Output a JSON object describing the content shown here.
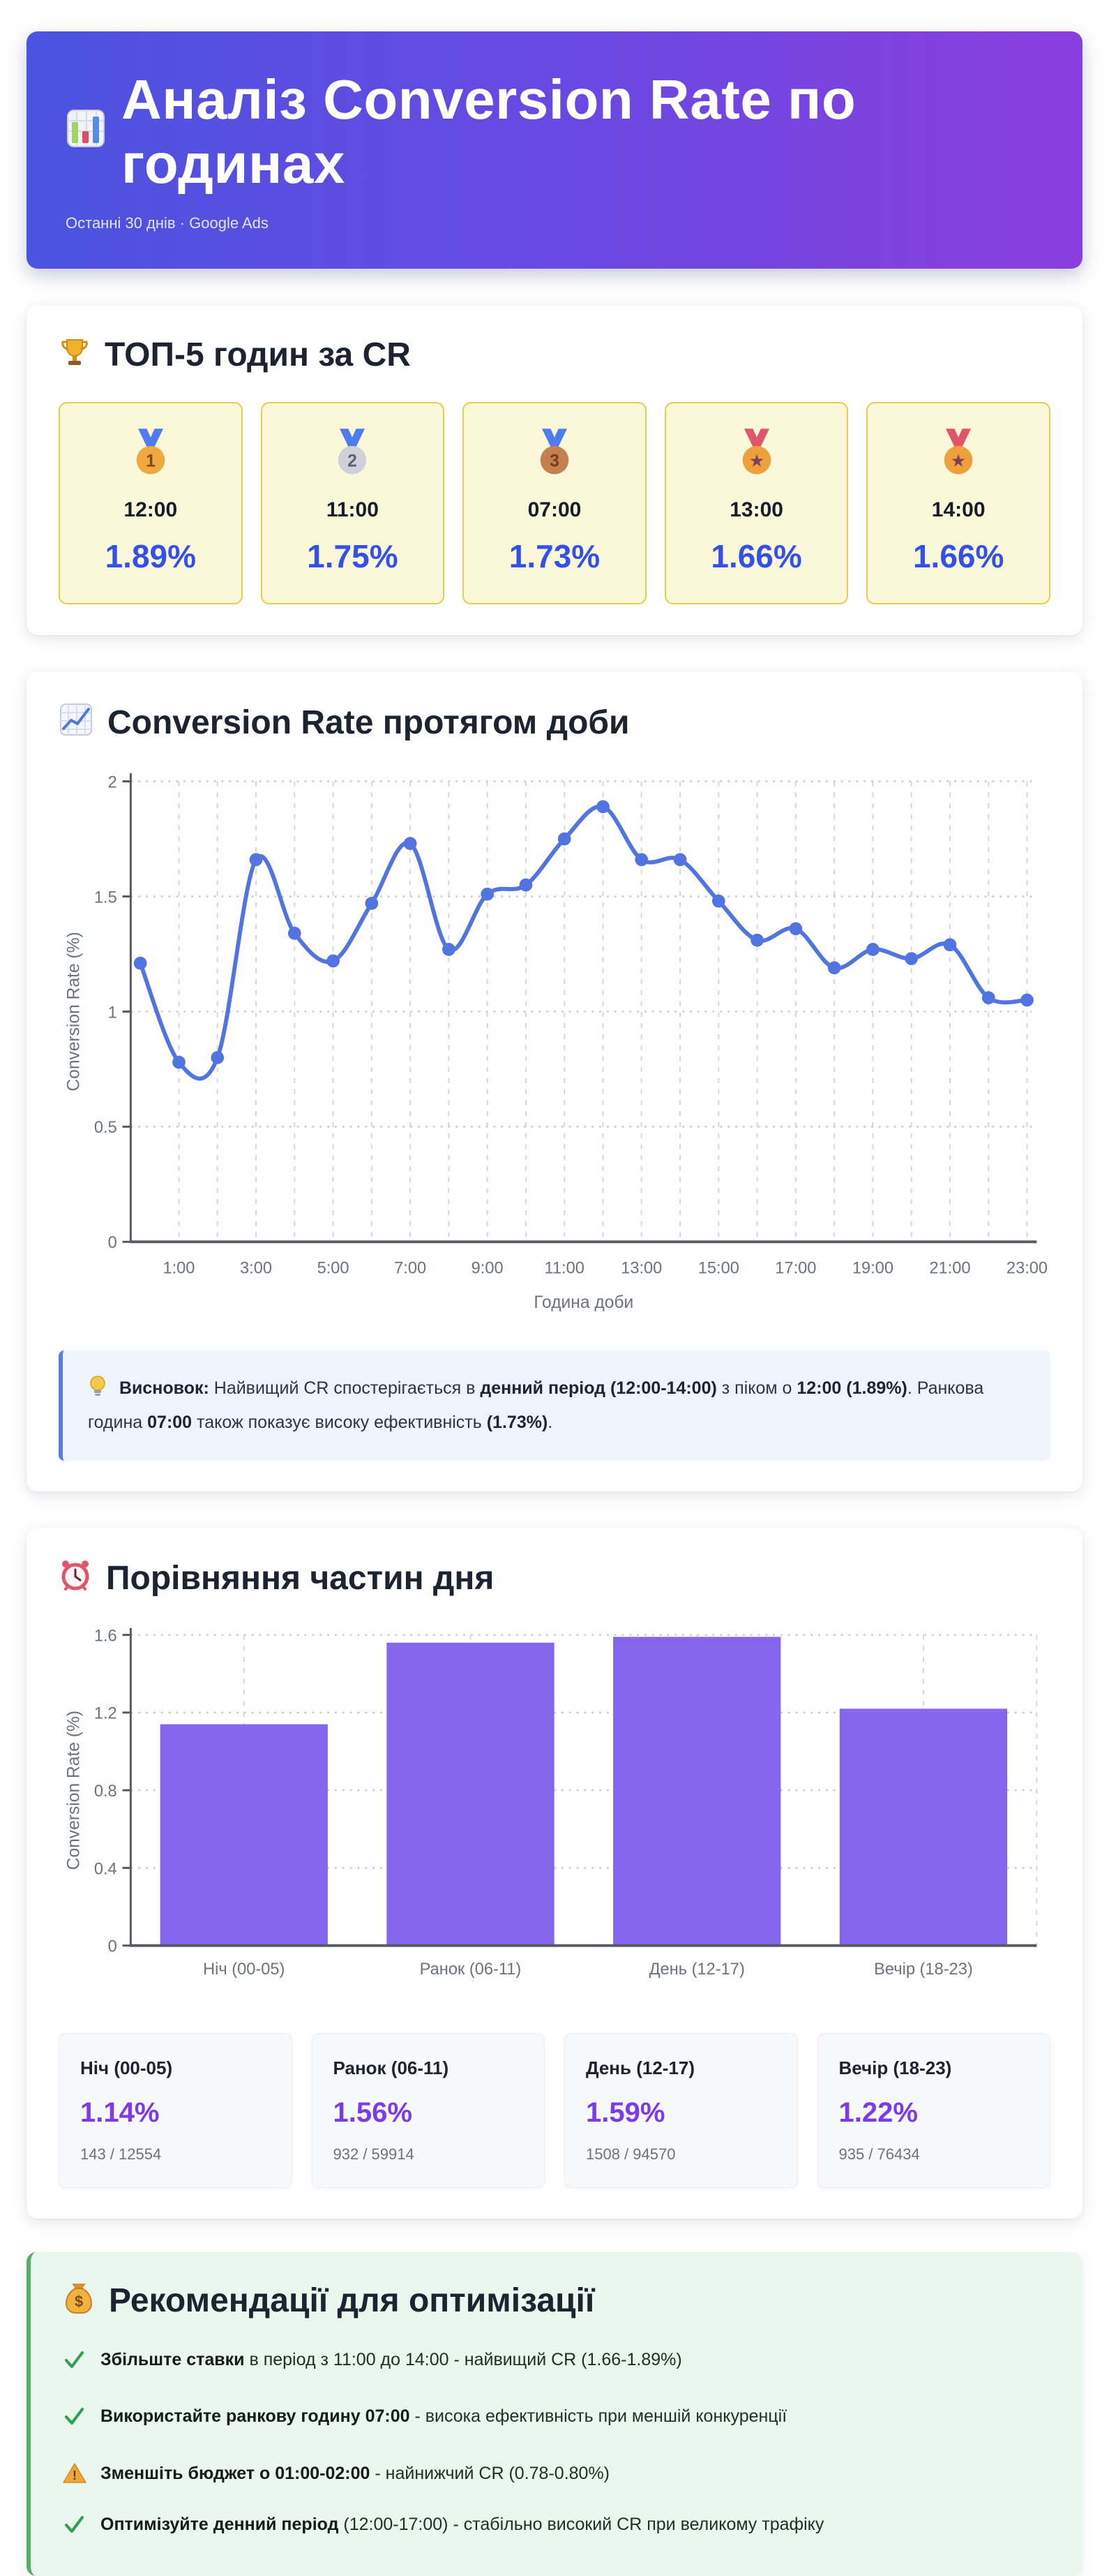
{
  "header": {
    "icon": "bar-chart-icon",
    "title": "Аналіз Conversion Rate по годинах",
    "subtitle": "Останні 30 днів · Google Ads"
  },
  "top5": {
    "icon": "trophy-icon",
    "title": "ТОП-5 годин за CR",
    "cards": [
      {
        "medal": "gold-medal-icon",
        "medal_label": "1",
        "medal_color": "#efa83f",
        "ribbon_color": "#4f7df0",
        "time": "12:00",
        "cr": "1.89%"
      },
      {
        "medal": "silver-medal-icon",
        "medal_label": "2",
        "medal_color": "#cfd0dc",
        "ribbon_color": "#4f7df0",
        "time": "11:00",
        "cr": "1.75%"
      },
      {
        "medal": "bronze-medal-icon",
        "medal_label": "3",
        "medal_color": "#c67f4e",
        "ribbon_color": "#4f7df0",
        "time": "07:00",
        "cr": "1.73%"
      },
      {
        "medal": "sports-medal-icon",
        "medal_label": "★",
        "medal_color": "#eda03b",
        "ribbon_color": "#e0556a",
        "time": "13:00",
        "cr": "1.66%"
      },
      {
        "medal": "sports-medal-icon",
        "medal_label": "★",
        "medal_color": "#eda03b",
        "ribbon_color": "#e0556a",
        "time": "14:00",
        "cr": "1.66%"
      }
    ]
  },
  "hourly": {
    "icon": "chart-up-icon",
    "title": "Conversion Rate протягом доби",
    "conclusion_icon": "lightbulb-icon",
    "conclusion": [
      {
        "text": "Висновок:",
        "bold": true
      },
      {
        "text": " Найвищий CR спостерігається в ",
        "bold": false
      },
      {
        "text": "денний період (12:00-14:00)",
        "bold": true
      },
      {
        "text": " з піком о ",
        "bold": false
      },
      {
        "text": "12:00 (1.89%)",
        "bold": true
      },
      {
        "text": ". Ранкова година ",
        "bold": false
      },
      {
        "text": "07:00",
        "bold": true
      },
      {
        "text": " також показує високу ефективність ",
        "bold": false
      },
      {
        "text": "(1.73%)",
        "bold": true
      },
      {
        "text": ".",
        "bold": false
      }
    ]
  },
  "dayparts": {
    "icon": "alarm-clock-icon",
    "title": "Порівняння частин дня",
    "stats": [
      {
        "label": "Ніч (00-05)",
        "value": "1.14%",
        "detail": "143 / 12554"
      },
      {
        "label": "Ранок (06-11)",
        "value": "1.56%",
        "detail": "932 / 59914"
      },
      {
        "label": "День (12-17)",
        "value": "1.59%",
        "detail": "1508 / 94570"
      },
      {
        "label": "Вечір (18-23)",
        "value": "1.22%",
        "detail": "935 / 76434"
      }
    ]
  },
  "recommendations": {
    "icon": "money-bag-icon",
    "title": "Рекомендації для оптимізації",
    "items": [
      {
        "css": "rec-item",
        "icon": "check-icon",
        "segments": [
          {
            "text": "Збільште ставки",
            "bold": true
          },
          {
            "text": " в період з 11:00 до 14:00 - найвищий CR (1.66-1.89%)",
            "bold": false
          }
        ]
      },
      {
        "css": "rec-item",
        "icon": "check-icon",
        "segments": [
          {
            "text": "Використайте ранкову годину 07:00",
            "bold": true
          },
          {
            "text": " - висока ефективність при меншій конкуренції",
            "bold": false
          }
        ]
      },
      {
        "css": "rec-item warn",
        "icon": "warning-icon",
        "segments": [
          {
            "text": "Зменшіть бюджет о 01:00-02:00",
            "bold": true
          },
          {
            "text": " - найнижчий CR (0.78-0.80%)",
            "bold": false
          }
        ]
      },
      {
        "css": "rec-item",
        "icon": "check-icon",
        "segments": [
          {
            "text": "Оптимізуйте денний період",
            "bold": true
          },
          {
            "text": " (12:00-17:00) - стабільно високий CR при великому трафіку",
            "bold": false
          }
        ]
      }
    ]
  },
  "colors": {
    "header_gradient_start": "#4b53e0",
    "header_gradient_end": "#8a3de0",
    "top5_card_bg": "#fbf8da",
    "top5_card_border": "#e7cc52",
    "top5_value_blue": "#3351e8",
    "line_blue": "#5174e0",
    "bar_purple": "#8566ec",
    "stat_value_purple": "#7c3aed",
    "note_bg": "#eef4fb",
    "note_border": "#5b7ce2",
    "reco_bg": "#e9f7ee",
    "reco_border": "#57ad68",
    "check_green": "#2f9e4f"
  },
  "chart_data": [
    {
      "type": "line",
      "title": "Conversion Rate протягом доби",
      "x": [
        0,
        1,
        2,
        3,
        4,
        5,
        6,
        7,
        8,
        9,
        10,
        11,
        12,
        13,
        14,
        15,
        16,
        17,
        18,
        19,
        20,
        21,
        22,
        23
      ],
      "values": [
        1.21,
        0.78,
        0.8,
        1.66,
        1.34,
        1.22,
        1.47,
        1.73,
        1.27,
        1.51,
        1.55,
        1.75,
        1.89,
        1.66,
        1.66,
        1.48,
        1.31,
        1.36,
        1.19,
        1.27,
        1.23,
        1.29,
        1.06,
        1.05
      ],
      "xlabel": "Година доби",
      "ylabel": "Conversion Rate (%)",
      "ylim": [
        0,
        2
      ],
      "yticks": [
        0,
        0.5,
        1,
        1.5,
        2
      ],
      "xticks": [
        1,
        3,
        5,
        7,
        9,
        11,
        13,
        15,
        17,
        19,
        21,
        23
      ],
      "xtick_labels": [
        "1:00",
        "3:00",
        "5:00",
        "7:00",
        "9:00",
        "11:00",
        "13:00",
        "15:00",
        "17:00",
        "19:00",
        "21:00",
        "23:00"
      ],
      "grid": true,
      "legend": "none",
      "line_color": "#5174e0"
    },
    {
      "type": "bar",
      "title": "Порівняння частин дня",
      "categories": [
        "Ніч (00-05)",
        "Ранок (06-11)",
        "День (12-17)",
        "Вечір (18-23)"
      ],
      "values": [
        1.14,
        1.56,
        1.59,
        1.22
      ],
      "xlabel": "",
      "ylabel": "Conversion Rate (%)",
      "ylim": [
        0,
        1.6
      ],
      "yticks": [
        0,
        0.4,
        0.8,
        1.2,
        1.6
      ],
      "grid": true,
      "legend": "none",
      "bar_color": "#8566ec"
    }
  ]
}
